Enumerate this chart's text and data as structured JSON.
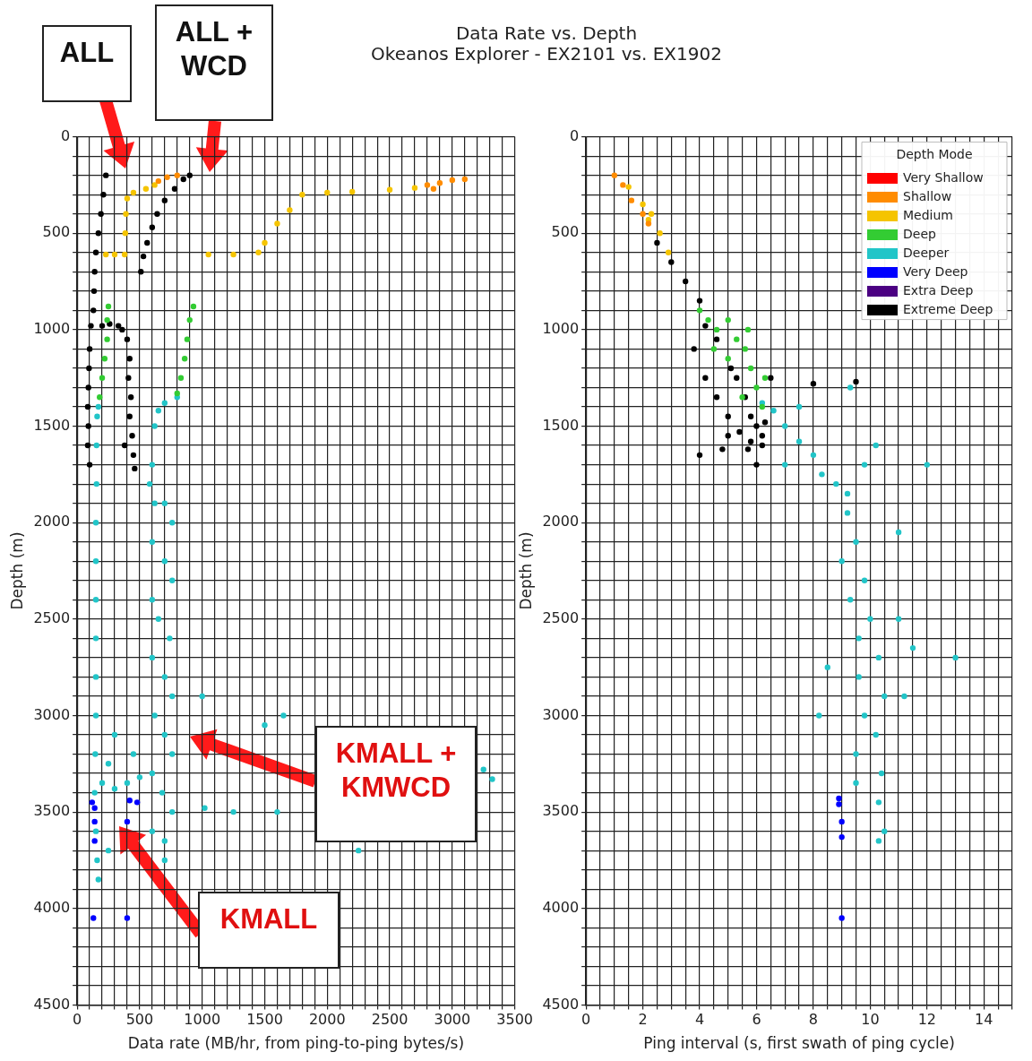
{
  "chart_data": [
    {
      "type": "scatter",
      "title": "Data Rate vs. Depth",
      "subtitle": "Okeanos Explorer - EX2101 vs. EX1902",
      "xlabel": "Data rate (MB/hr, from ping-to-ping bytes/s)",
      "ylabel": "Depth (m)",
      "xlim": [
        0,
        3500
      ],
      "ylim": [
        4500,
        0
      ],
      "grid": true,
      "marker": "circle",
      "xticks": [
        0,
        {
          "value": 100,
          "label": null
        },
        {
          "value": 200,
          "label": null
        },
        {
          "value": 300,
          "label": null
        },
        {
          "value": 400,
          "label": null
        },
        500,
        {
          "value": 600,
          "label": null
        },
        {
          "value": 700,
          "label": null
        },
        {
          "value": 800,
          "label": null
        },
        {
          "value": 900,
          "label": null
        },
        1000,
        {
          "value": 1100,
          "label": null
        },
        {
          "value": 1200,
          "label": null
        },
        {
          "value": 1300,
          "label": null
        },
        {
          "value": 1400,
          "label": null
        },
        1500,
        {
          "value": 1600,
          "label": null
        },
        {
          "value": 1700,
          "label": null
        },
        {
          "value": 1800,
          "label": null
        },
        {
          "value": 1900,
          "label": null
        },
        2000,
        {
          "value": 2100,
          "label": null
        },
        {
          "value": 2200,
          "label": null
        },
        {
          "value": 2300,
          "label": null
        },
        {
          "value": 2400,
          "label": null
        },
        2500,
        {
          "value": 2600,
          "label": null
        },
        {
          "value": 2700,
          "label": null
        },
        {
          "value": 2800,
          "label": null
        },
        {
          "value": 2900,
          "label": null
        },
        3000,
        {
          "value": 3100,
          "label": null
        },
        {
          "value": 3200,
          "label": null
        },
        {
          "value": 3300,
          "label": null
        },
        {
          "value": 3400,
          "label": null
        },
        3500
      ],
      "yticks": [
        0,
        {
          "value": 100,
          "label": null
        },
        {
          "value": 200,
          "label": null
        },
        {
          "value": 300,
          "label": null
        },
        {
          "value": 400,
          "label": null
        },
        500,
        {
          "value": 600,
          "label": null
        },
        {
          "value": 700,
          "label": null
        },
        {
          "value": 800,
          "label": null
        },
        {
          "value": 900,
          "label": null
        },
        1000,
        {
          "value": 1100,
          "label": null
        },
        {
          "value": 1200,
          "label": null
        },
        {
          "value": 1300,
          "label": null
        },
        {
          "value": 1400,
          "label": null
        },
        1500,
        {
          "value": 1600,
          "label": null
        },
        {
          "value": 1700,
          "label": null
        },
        {
          "value": 1800,
          "label": null
        },
        {
          "value": 1900,
          "label": null
        },
        2000,
        {
          "value": 2100,
          "label": null
        },
        {
          "value": 2200,
          "label": null
        },
        {
          "value": 2300,
          "label": null
        },
        {
          "value": 2400,
          "label": null
        },
        2500,
        {
          "value": 2600,
          "label": null
        },
        {
          "value": 2700,
          "label": null
        },
        {
          "value": 2800,
          "label": null
        },
        {
          "value": 2900,
          "label": null
        },
        3000,
        {
          "value": 3100,
          "label": null
        },
        {
          "value": 3200,
          "label": null
        },
        {
          "value": 3300,
          "label": null
        },
        {
          "value": 3400,
          "label": null
        },
        3500,
        {
          "value": 3600,
          "label": null
        },
        {
          "value": 3700,
          "label": null
        },
        {
          "value": 3800,
          "label": null
        },
        {
          "value": 3900,
          "label": null
        },
        4000,
        {
          "value": 4100,
          "label": null
        },
        {
          "value": 4200,
          "label": null
        },
        {
          "value": 4300,
          "label": null
        },
        {
          "value": 4400,
          "label": null
        },
        4500
      ],
      "annotations": [
        "ALL",
        "ALL + WCD",
        "KMALL + KMWCD",
        "KMALL"
      ],
      "series": [
        {
          "color": "#ff8c00",
          "x": [
            650,
            720,
            800,
            2800,
            2900,
            3000,
            3100,
            2850
          ],
          "values": [
            230,
            210,
            200,
            250,
            240,
            225,
            220,
            270
          ]
        },
        {
          "color": "#f5c400",
          "x": [
            230,
            300,
            380,
            385,
            390,
            400,
            450,
            550,
            620,
            1050,
            1250,
            1450,
            1500,
            1600,
            1700,
            1800,
            2000,
            2200,
            2500,
            2700
          ],
          "values": [
            610,
            610,
            610,
            500,
            400,
            320,
            290,
            270,
            250,
            610,
            610,
            600,
            550,
            450,
            380,
            300,
            290,
            285,
            275,
            265
          ]
        },
        {
          "color": "#33cc33",
          "x": [
            250,
            240,
            240,
            220,
            200,
            180,
            930,
            900,
            880,
            860,
            830,
            800
          ],
          "values": [
            880,
            950,
            1050,
            1150,
            1250,
            1350,
            880,
            950,
            1050,
            1150,
            1250,
            1330
          ]
        },
        {
          "color": "#22c5c8",
          "x": [
            170,
            160,
            155,
            155,
            150,
            150,
            150,
            150,
            150,
            150,
            145,
            140,
            150,
            160,
            170,
            800,
            700,
            650,
            620,
            600,
            580,
            620,
            700,
            760,
            600,
            700,
            760,
            600,
            650,
            740,
            600,
            700,
            760,
            620,
            700,
            760,
            600,
            680,
            760,
            600,
            700,
            200,
            300,
            400,
            500,
            300,
            450,
            250,
            1000,
            1650,
            1500,
            3250,
            3320,
            1600,
            1250,
            2250,
            1020,
            250,
            700
          ],
          "values": [
            1400,
            1450,
            1600,
            1800,
            2000,
            2200,
            2400,
            2600,
            2800,
            3000,
            3200,
            3400,
            3600,
            3750,
            3850,
            1350,
            1380,
            1420,
            1500,
            1700,
            1800,
            1900,
            1900,
            2000,
            2100,
            2200,
            2300,
            2400,
            2500,
            2600,
            2700,
            2800,
            2900,
            3000,
            3100,
            3200,
            3300,
            3400,
            3500,
            3600,
            3650,
            3350,
            3380,
            3350,
            3320,
            3100,
            3200,
            3250,
            2900,
            3000,
            3050,
            3280,
            3330,
            3500,
            3500,
            3700,
            3480,
            3700,
            3750
          ]
        },
        {
          "color": "#0000ff",
          "x": [
            120,
            140,
            140,
            140,
            420,
            480,
            400,
            400,
            130
          ],
          "values": [
            3450,
            3480,
            3550,
            3650,
            3440,
            3450,
            3550,
            4050,
            4050
          ]
        },
        {
          "color": "#000000",
          "x": [
            230,
            210,
            190,
            170,
            150,
            140,
            135,
            130,
            110,
            100,
            95,
            90,
            85,
            90,
            85,
            100,
            900,
            850,
            780,
            700,
            640,
            600,
            560,
            530,
            510,
            200,
            260,
            330,
            360,
            400,
            420,
            410,
            430,
            420,
            440,
            450,
            460,
            380
          ],
          "values": [
            200,
            300,
            400,
            500,
            600,
            700,
            800,
            900,
            980,
            1100,
            1200,
            1300,
            1400,
            1500,
            1600,
            1700,
            200,
            220,
            270,
            330,
            400,
            470,
            550,
            620,
            700,
            980,
            970,
            980,
            1000,
            1050,
            1150,
            1250,
            1350,
            1450,
            1550,
            1650,
            1720,
            1600
          ]
        }
      ]
    },
    {
      "type": "scatter",
      "xlabel": "Ping interval (s, first swath of ping cycle)",
      "ylabel": "Depth (m)",
      "xlim": [
        0,
        15
      ],
      "ylim": [
        4500,
        0
      ],
      "grid": true,
      "marker": "circle",
      "legend": "top right",
      "legend_title": "Depth Mode",
      "xticks": [
        0,
        {
          "value": 0.5,
          "label": null
        },
        {
          "value": 1,
          "label": null
        },
        {
          "value": 1.5,
          "label": null
        },
        2,
        {
          "value": 2.5,
          "label": null
        },
        {
          "value": 3,
          "label": null
        },
        {
          "value": 3.5,
          "label": null
        },
        4,
        {
          "value": 4.5,
          "label": null
        },
        {
          "value": 5,
          "label": null
        },
        {
          "value": 5.5,
          "label": null
        },
        6,
        {
          "value": 6.5,
          "label": null
        },
        {
          "value": 7,
          "label": null
        },
        {
          "value": 7.5,
          "label": null
        },
        8,
        {
          "value": 8.5,
          "label": null
        },
        {
          "value": 9,
          "label": null
        },
        {
          "value": 9.5,
          "label": null
        },
        10,
        {
          "value": 10.5,
          "label": null
        },
        {
          "value": 11,
          "label": null
        },
        {
          "value": 11.5,
          "label": null
        },
        12,
        {
          "value": 12.5,
          "label": null
        },
        {
          "value": 13,
          "label": null
        },
        {
          "value": 13.5,
          "label": null
        },
        14,
        {
          "value": 14.5,
          "label": null
        },
        {
          "value": 15,
          "label": null
        }
      ],
      "yticks": [
        0,
        {
          "value": 100,
          "label": null
        },
        {
          "value": 200,
          "label": null
        },
        {
          "value": 300,
          "label": null
        },
        {
          "value": 400,
          "label": null
        },
        500,
        {
          "value": 600,
          "label": null
        },
        {
          "value": 700,
          "label": null
        },
        {
          "value": 800,
          "label": null
        },
        {
          "value": 900,
          "label": null
        },
        1000,
        {
          "value": 1100,
          "label": null
        },
        {
          "value": 1200,
          "label": null
        },
        {
          "value": 1300,
          "label": null
        },
        {
          "value": 1400,
          "label": null
        },
        1500,
        {
          "value": 1600,
          "label": null
        },
        {
          "value": 1700,
          "label": null
        },
        {
          "value": 1800,
          "label": null
        },
        {
          "value": 1900,
          "label": null
        },
        2000,
        {
          "value": 2100,
          "label": null
        },
        {
          "value": 2200,
          "label": null
        },
        {
          "value": 2300,
          "label": null
        },
        {
          "value": 2400,
          "label": null
        },
        2500,
        {
          "value": 2600,
          "label": null
        },
        {
          "value": 2700,
          "label": null
        },
        {
          "value": 2800,
          "label": null
        },
        {
          "value": 2900,
          "label": null
        },
        3000,
        {
          "value": 3100,
          "label": null
        },
        {
          "value": 3200,
          "label": null
        },
        {
          "value": 3300,
          "label": null
        },
        {
          "value": 3400,
          "label": null
        },
        3500,
        {
          "value": 3600,
          "label": null
        },
        {
          "value": 3700,
          "label": null
        },
        {
          "value": 3800,
          "label": null
        },
        {
          "value": 3900,
          "label": null
        },
        4000,
        {
          "value": 4100,
          "label": null
        },
        {
          "value": 4200,
          "label": null
        },
        {
          "value": 4300,
          "label": null
        },
        {
          "value": 4400,
          "label": null
        },
        4500
      ],
      "series": [
        {
          "name": "Very Shallow",
          "color": "#ff0000"
        },
        {
          "name": "Shallow",
          "color": "#ff8c00",
          "x": [
            1,
            1.3,
            1.6,
            2,
            2.2
          ],
          "values": [
            200,
            250,
            330,
            400,
            450
          ]
        },
        {
          "name": "Medium",
          "color": "#f5c400",
          "x": [
            1.5,
            2,
            2.3,
            2.6,
            2.9,
            2.2
          ],
          "values": [
            260,
            350,
            400,
            500,
            600,
            430
          ]
        },
        {
          "name": "Deep",
          "color": "#33cc33",
          "x": [
            4,
            4.3,
            4.6,
            5,
            5.3,
            5.6,
            5,
            5.8,
            6,
            5.5,
            6.2,
            4.5,
            5.7,
            6.3
          ],
          "values": [
            900,
            950,
            1000,
            950,
            1050,
            1100,
            1150,
            1200,
            1300,
            1350,
            1400,
            1100,
            1000,
            1250
          ]
        },
        {
          "name": "Deeper",
          "color": "#22c5c8",
          "x": [
            6.2,
            6.6,
            7,
            7.5,
            7,
            8,
            8.3,
            8.8,
            9.2,
            9.8,
            10.2,
            9.2,
            9.5,
            9,
            9.8,
            9.3,
            10,
            9.6,
            10.3,
            9.6,
            10.5,
            9.8,
            10.2,
            9.5,
            10.4,
            9.5,
            10.3,
            10.5,
            8.5,
            8.2,
            11,
            11.5,
            13,
            11.2,
            12,
            11,
            9.3,
            7.5,
            10.3
          ],
          "values": [
            1380,
            1420,
            1500,
            1580,
            1700,
            1650,
            1750,
            1800,
            1850,
            1700,
            1600,
            1950,
            2100,
            2200,
            2300,
            2400,
            2500,
            2600,
            2700,
            2800,
            2900,
            3000,
            3100,
            3200,
            3300,
            3350,
            3450,
            3600,
            2750,
            3000,
            2500,
            2650,
            2700,
            2900,
            1700,
            2050,
            1300,
            1400,
            3650
          ]
        },
        {
          "name": "Very Deep",
          "color": "#0000ff",
          "x": [
            8.9,
            8.9,
            9,
            9,
            9
          ],
          "values": [
            3430,
            3460,
            3550,
            3630,
            4050
          ]
        },
        {
          "name": "Extra Deep",
          "color": "#4b0082"
        },
        {
          "name": "Extreme Deep",
          "color": "#000000",
          "x": [
            2.5,
            3,
            3.5,
            4,
            4.2,
            4.6,
            5.1,
            5.3,
            5.6,
            5.8,
            6,
            6.2,
            5.7,
            3.8,
            4.2,
            4.6,
            5,
            5.4,
            5.8,
            6.2,
            6.3,
            4,
            4.8,
            6.5,
            8,
            9.5,
            5,
            6
          ],
          "values": [
            550,
            650,
            750,
            850,
            980,
            1050,
            1200,
            1250,
            1350,
            1450,
            1500,
            1550,
            1620,
            1100,
            1250,
            1350,
            1450,
            1530,
            1580,
            1600,
            1480,
            1650,
            1620,
            1250,
            1280,
            1270,
            1550,
            1700
          ]
        }
      ]
    }
  ]
}
